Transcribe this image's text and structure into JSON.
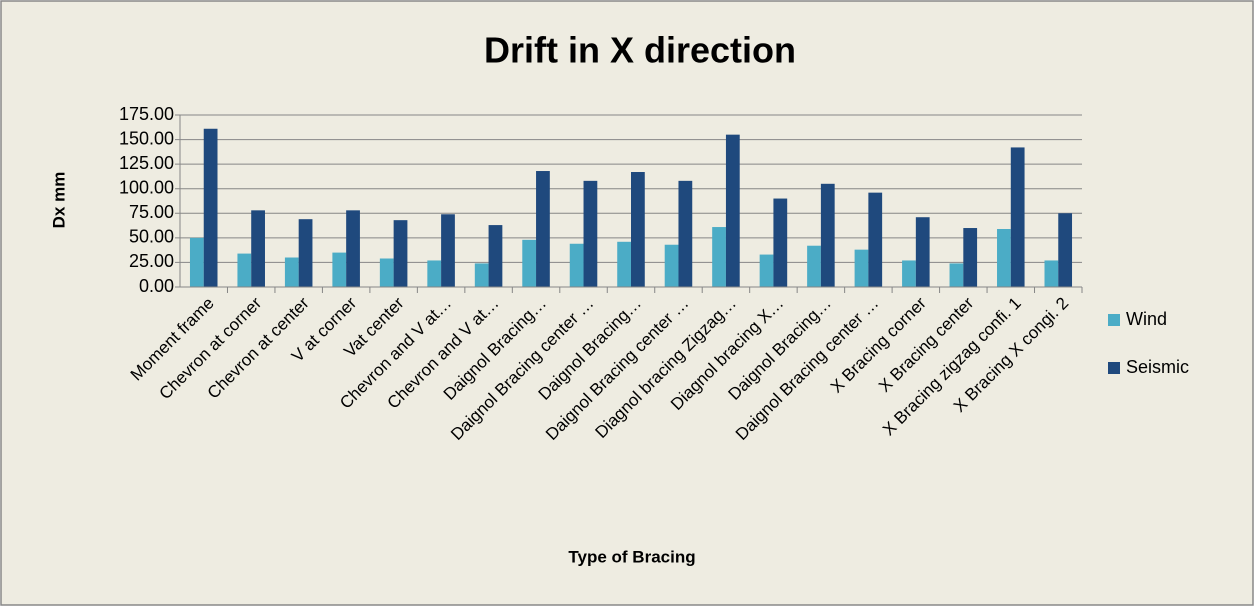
{
  "chart_data": {
    "type": "bar",
    "title": "Drift in X direction",
    "x_label": "Type of Bracing",
    "y_label": "Dx mm",
    "categories": [
      "Moment frame",
      "Chevron at corner",
      "Chevron at center",
      "V at corner",
      "Vat center",
      "Chevron and V at…",
      "Chevron and V at…",
      "Daignol Bracing…",
      "Daignol Bracing center …",
      "Daignol Bracing…",
      "Daignol Bracing center …",
      "Diagnol bracing Zigzag…",
      "Diagnol bracing X…",
      "Daignol Bracing…",
      "Daignol Bracing center …",
      "X Bracing corner",
      "X Bracing center",
      "X Bracing zigzag confi. 1",
      "X Bracing X congi. 2"
    ],
    "series": [
      {
        "name": "Wind",
        "color": "#4bacc6",
        "values": [
          50,
          34,
          30,
          35,
          29,
          27,
          24,
          48,
          44,
          46,
          43,
          61,
          33,
          42,
          38,
          27,
          24,
          59,
          27
        ]
      },
      {
        "name": "Seismic",
        "color": "#1f497d",
        "values": [
          161,
          78,
          69,
          78,
          68,
          74,
          63,
          118,
          108,
          117,
          108,
          155,
          90,
          105,
          96,
          71,
          60,
          142,
          75
        ]
      }
    ],
    "ylim": [
      0,
      175
    ],
    "yticks": [
      {
        "value": 0,
        "label": "0.00"
      },
      {
        "value": 25,
        "label": "25.00"
      },
      {
        "value": 50,
        "label": "50.00"
      },
      {
        "value": 75,
        "label": "75.00"
      },
      {
        "value": 100,
        "label": "100.00"
      },
      {
        "value": 125,
        "label": "125.00"
      },
      {
        "value": 150,
        "label": "150.00"
      },
      {
        "value": 175,
        "label": "175.00"
      }
    ],
    "grid": true,
    "legend": "right"
  }
}
